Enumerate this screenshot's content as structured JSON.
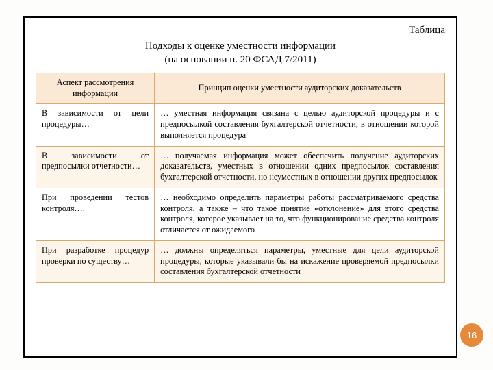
{
  "label": "Таблица",
  "title_line1": "Подходы к оценке уместности информации",
  "title_line2": "(на основании п. 20 ФСАД 7/2011)",
  "page_number": "16",
  "accent_color": "#e58a3a",
  "border_color": "#d9a86a",
  "header_bg": "#fbe8d5",
  "row_alt_bg": "#fdf4ea",
  "table": {
    "columns": [
      "Аспект рассмотрения информации",
      "Принцип оценки уместности аудиторских доказательств"
    ],
    "rows": [
      [
        "В зависимости от цели процедуры…",
        "… уместная информация связана с целью аудиторской процедуры и с предпосылкой составления бухгалтерской отчетности, в отношении которой выполняется процедура"
      ],
      [
        "В зависимости от предпосылки отчетности…",
        "… получаемая информация может обеспечить получение аудиторских доказательств, уместных в отношении одних предпосылок составления бухгалтерской отчетности, но неуместных в отношении других предпосылок"
      ],
      [
        "При проведении тестов контроля….",
        "… необходимо определить параметры работы рассматриваемого средства контроля, а также – что такое понятие «отклонение» для этого средства контроля, которое указывает на то, что функционирование средства контроля отличается от ожидаемого"
      ],
      [
        "При разработке процедур проверки по существу…",
        "… должны определяться параметры, уместные для цели аудиторской процедуры, которые указывали бы на искажение проверяемой предпосылки составления бухгалтерской отчетности"
      ]
    ]
  }
}
